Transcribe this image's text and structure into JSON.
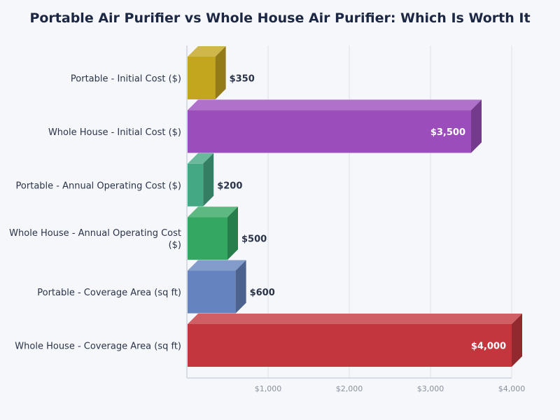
{
  "chart_data": {
    "type": "bar",
    "orientation": "horizontal",
    "title": "Portable Air Purifier vs Whole House Air Purifier: Which Is Worth It",
    "categories": [
      "Portable - Initial Cost ($)",
      "Whole House - Initial Cost ($)",
      "Portable - Annual Operating Cost ($)",
      "Whole House - Annual Operating Cost ($)",
      "Portable - Coverage Area (sq ft)",
      "Whole House - Coverage Area (sq ft)"
    ],
    "values": [
      350,
      3500,
      200,
      500,
      600,
      4000
    ],
    "value_labels": [
      "$350",
      "$3,500",
      "$200",
      "$500",
      "$600",
      "$4,000"
    ],
    "colors": [
      "#c4a51e",
      "#9b4dbb",
      "#45a884",
      "#34a862",
      "#6583be",
      "#c3363e"
    ],
    "xlim": [
      0,
      4000
    ],
    "xticks": [
      1000,
      2000,
      3000,
      4000
    ],
    "xtick_labels": [
      "$1,000",
      "$2,000",
      "$3,000",
      "$4,000"
    ],
    "xlabel": "",
    "ylabel": "",
    "grid": "vertical",
    "style": "3d"
  }
}
